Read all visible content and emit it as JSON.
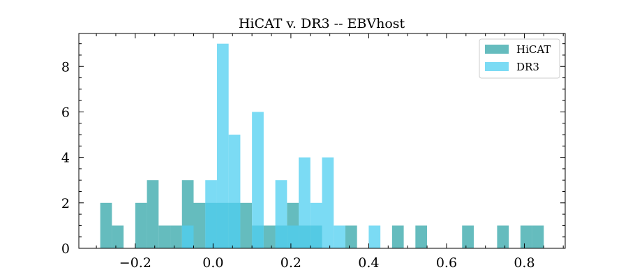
{
  "chart_data": {
    "type": "bar",
    "title": "HiCAT v. DR3 -- EBVhost",
    "xlabel": "",
    "ylabel": "",
    "xlim": [
      -0.345,
      0.905
    ],
    "ylim": [
      0,
      9.45
    ],
    "bin_width": 0.03,
    "x_ticks": [
      -0.2,
      0.0,
      0.2,
      0.4,
      0.6,
      0.8
    ],
    "x_tick_labels": [
      "−0.2",
      "0.0",
      "0.2",
      "0.4",
      "0.6",
      "0.8"
    ],
    "y_ticks": [
      0,
      2,
      4,
      6,
      8
    ],
    "y_tick_labels": [
      "0",
      "2",
      "4",
      "6",
      "8"
    ],
    "grid": false,
    "legend_position": "top-right",
    "series": [
      {
        "name": "HiCAT",
        "color": "#3aa9ac",
        "opacity": 0.78,
        "bins": [
          {
            "x0": -0.29,
            "x1": -0.26,
            "count": 2
          },
          {
            "x0": -0.26,
            "x1": -0.23,
            "count": 1
          },
          {
            "x0": -0.2,
            "x1": -0.17,
            "count": 2
          },
          {
            "x0": -0.17,
            "x1": -0.14,
            "count": 3
          },
          {
            "x0": -0.14,
            "x1": -0.11,
            "count": 1
          },
          {
            "x0": -0.11,
            "x1": -0.08,
            "count": 1
          },
          {
            "x0": -0.08,
            "x1": -0.05,
            "count": 3
          },
          {
            "x0": -0.05,
            "x1": -0.02,
            "count": 2
          },
          {
            "x0": -0.02,
            "x1": 0.01,
            "count": 2
          },
          {
            "x0": 0.01,
            "x1": 0.04,
            "count": 2
          },
          {
            "x0": 0.04,
            "x1": 0.07,
            "count": 2
          },
          {
            "x0": 0.07,
            "x1": 0.1,
            "count": 2
          },
          {
            "x0": 0.1,
            "x1": 0.13,
            "count": 1
          },
          {
            "x0": 0.13,
            "x1": 0.16,
            "count": 1
          },
          {
            "x0": 0.16,
            "x1": 0.19,
            "count": 1
          },
          {
            "x0": 0.19,
            "x1": 0.22,
            "count": 2
          },
          {
            "x0": 0.22,
            "x1": 0.25,
            "count": 1
          },
          {
            "x0": 0.25,
            "x1": 0.28,
            "count": 1
          },
          {
            "x0": 0.34,
            "x1": 0.37,
            "count": 1
          },
          {
            "x0": 0.46,
            "x1": 0.49,
            "count": 1
          },
          {
            "x0": 0.52,
            "x1": 0.55,
            "count": 1
          },
          {
            "x0": 0.64,
            "x1": 0.67,
            "count": 1
          },
          {
            "x0": 0.73,
            "x1": 0.76,
            "count": 1
          },
          {
            "x0": 0.79,
            "x1": 0.82,
            "count": 1
          },
          {
            "x0": 0.82,
            "x1": 0.85,
            "count": 1
          }
        ]
      },
      {
        "name": "DR3",
        "color": "#4fcff0",
        "opacity": 0.75,
        "bins": [
          {
            "x0": -0.08,
            "x1": -0.05,
            "count": 1
          },
          {
            "x0": -0.02,
            "x1": 0.01,
            "count": 3
          },
          {
            "x0": 0.01,
            "x1": 0.04,
            "count": 9
          },
          {
            "x0": 0.04,
            "x1": 0.07,
            "count": 5
          },
          {
            "x0": 0.1,
            "x1": 0.13,
            "count": 6
          },
          {
            "x0": 0.16,
            "x1": 0.19,
            "count": 3
          },
          {
            "x0": 0.19,
            "x1": 0.22,
            "count": 1
          },
          {
            "x0": 0.22,
            "x1": 0.25,
            "count": 4
          },
          {
            "x0": 0.25,
            "x1": 0.28,
            "count": 2
          },
          {
            "x0": 0.28,
            "x1": 0.31,
            "count": 4
          },
          {
            "x0": 0.31,
            "x1": 0.34,
            "count": 1
          },
          {
            "x0": 0.4,
            "x1": 0.43,
            "count": 1
          }
        ]
      }
    ]
  }
}
